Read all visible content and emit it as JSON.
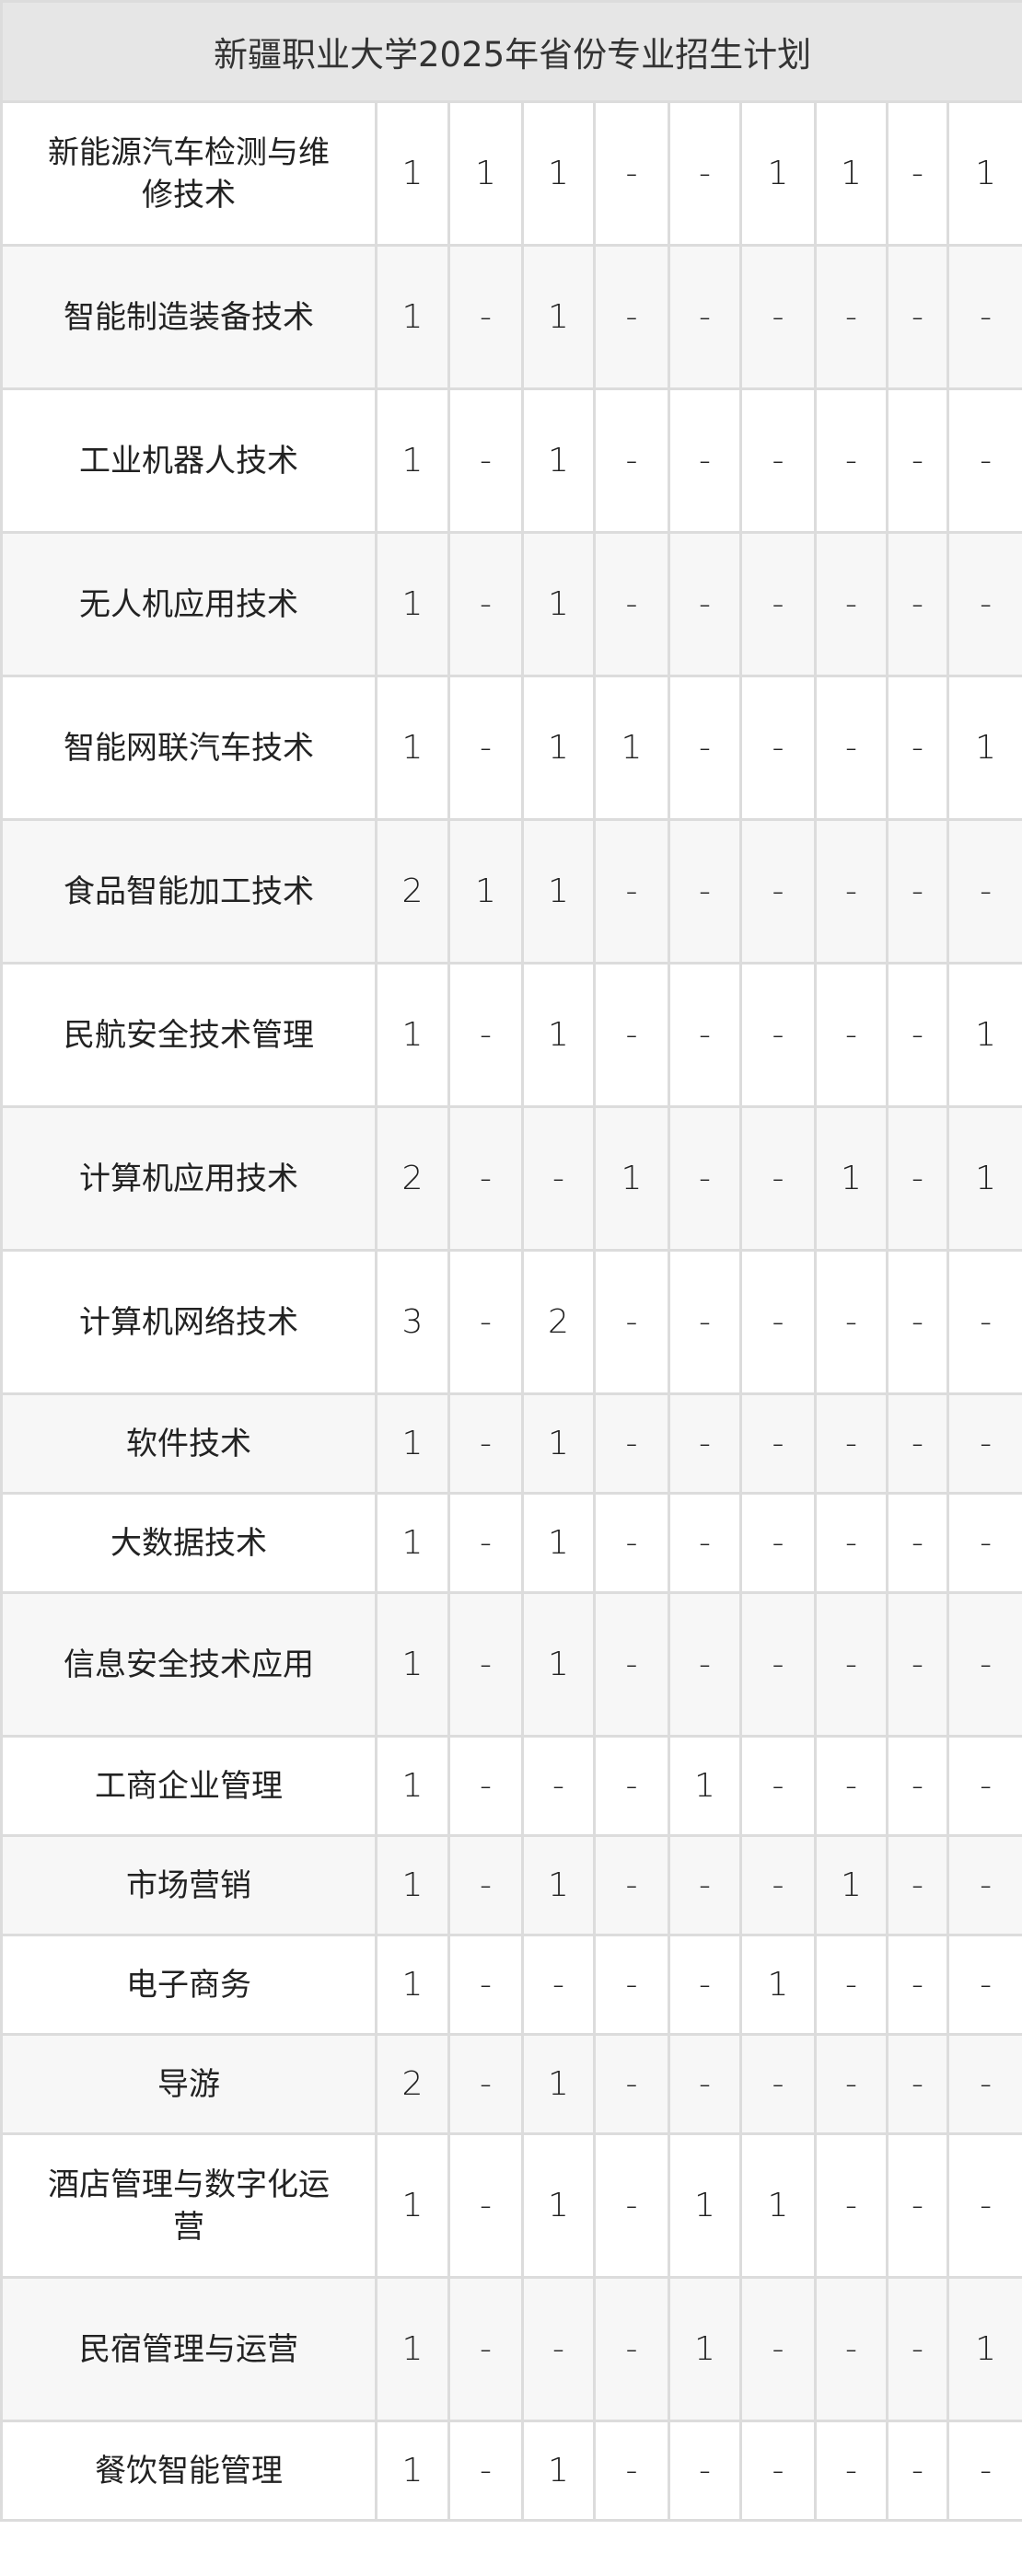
{
  "title": "新疆职业大学2025年省份专业招生计划",
  "rows": [
    {
      "name": "新能源汽车检测与维修技术",
      "values": [
        "1",
        "1",
        "1",
        "-",
        "-",
        "1",
        "1",
        "-",
        "1"
      ]
    },
    {
      "name": "智能制造装备技术",
      "values": [
        "1",
        "-",
        "1",
        "-",
        "-",
        "-",
        "-",
        "-",
        "-"
      ]
    },
    {
      "name": "工业机器人技术",
      "values": [
        "1",
        "-",
        "1",
        "-",
        "-",
        "-",
        "-",
        "-",
        "-"
      ]
    },
    {
      "name": "无人机应用技术",
      "values": [
        "1",
        "-",
        "1",
        "-",
        "-",
        "-",
        "-",
        "-",
        "-"
      ]
    },
    {
      "name": "智能网联汽车技术",
      "values": [
        "1",
        "-",
        "1",
        "1",
        "-",
        "-",
        "-",
        "-",
        "1"
      ]
    },
    {
      "name": "食品智能加工技术",
      "values": [
        "2",
        "1",
        "1",
        "-",
        "-",
        "-",
        "-",
        "-",
        "-"
      ]
    },
    {
      "name": "民航安全技术管理",
      "values": [
        "1",
        "-",
        "1",
        "-",
        "-",
        "-",
        "-",
        "-",
        "1"
      ]
    },
    {
      "name": "计算机应用技术",
      "values": [
        "2",
        "-",
        "-",
        "1",
        "-",
        "-",
        "1",
        "-",
        "1"
      ]
    },
    {
      "name": "计算机网络技术",
      "values": [
        "3",
        "-",
        "2",
        "-",
        "-",
        "-",
        "-",
        "-",
        "-"
      ]
    },
    {
      "name": "软件技术",
      "values": [
        "1",
        "-",
        "1",
        "-",
        "-",
        "-",
        "-",
        "-",
        "-"
      ]
    },
    {
      "name": "大数据技术",
      "values": [
        "1",
        "-",
        "1",
        "-",
        "-",
        "-",
        "-",
        "-",
        "-"
      ]
    },
    {
      "name": "信息安全技术应用",
      "values": [
        "1",
        "-",
        "1",
        "-",
        "-",
        "-",
        "-",
        "-",
        "-"
      ]
    },
    {
      "name": "工商企业管理",
      "values": [
        "1",
        "-",
        "-",
        "-",
        "1",
        "-",
        "-",
        "-",
        "-"
      ]
    },
    {
      "name": "市场营销",
      "values": [
        "1",
        "-",
        "1",
        "-",
        "-",
        "-",
        "1",
        "-",
        "-"
      ]
    },
    {
      "name": "电子商务",
      "values": [
        "1",
        "-",
        "-",
        "-",
        "-",
        "1",
        "-",
        "-",
        "-"
      ]
    },
    {
      "name": "导游",
      "values": [
        "2",
        "-",
        "1",
        "-",
        "-",
        "-",
        "-",
        "-",
        "-"
      ]
    },
    {
      "name": "酒店管理与数字化运营",
      "values": [
        "1",
        "-",
        "1",
        "-",
        "1",
        "1",
        "-",
        "-",
        "-"
      ]
    },
    {
      "name": "民宿管理与运营",
      "values": [
        "1",
        "-",
        "-",
        "-",
        "1",
        "-",
        "-",
        "-",
        "1"
      ]
    },
    {
      "name": "餐饮智能管理",
      "values": [
        "1",
        "-",
        "1",
        "-",
        "-",
        "-",
        "-",
        "-",
        "-"
      ]
    }
  ]
}
